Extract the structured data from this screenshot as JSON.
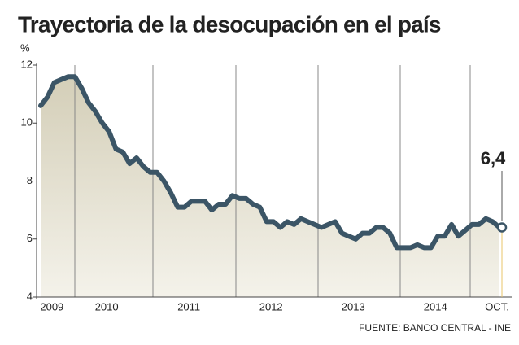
{
  "chart_data": {
    "type": "line",
    "title": "Trayectoria de la desocupación en el país",
    "y_label": "%",
    "source": "FUENTE: BANCO CENTRAL - INE",
    "end_label": "6,4",
    "color": "#3b5566",
    "area_color": "#d8d3bd",
    "ylim": [
      4,
      12
    ],
    "yticks": [
      4,
      6,
      8,
      10,
      12
    ],
    "categories": [
      null,
      null,
      "2009",
      null,
      null,
      null,
      null,
      null,
      null,
      null,
      "2010",
      null,
      null,
      null,
      null,
      null,
      null,
      null,
      null,
      null,
      null,
      null,
      "2011",
      null,
      null,
      null,
      null,
      null,
      null,
      null,
      null,
      null,
      null,
      null,
      "2012",
      null,
      null,
      null,
      null,
      null,
      null,
      null,
      null,
      null,
      null,
      null,
      "2013",
      null,
      null,
      null,
      null,
      null,
      null,
      null,
      null,
      null,
      null,
      null,
      "2014",
      null,
      null,
      null,
      null,
      null,
      null,
      null,
      null,
      "OCT."
    ],
    "values": [
      10.6,
      10.9,
      11.4,
      11.5,
      11.6,
      11.6,
      11.2,
      10.7,
      10.4,
      10.0,
      9.7,
      9.1,
      9.0,
      8.6,
      8.8,
      8.5,
      8.3,
      8.3,
      8.0,
      7.6,
      7.1,
      7.1,
      7.3,
      7.3,
      7.3,
      7.0,
      7.2,
      7.2,
      7.5,
      7.4,
      7.4,
      7.2,
      7.1,
      6.6,
      6.6,
      6.4,
      6.6,
      6.5,
      6.7,
      6.6,
      6.5,
      6.4,
      6.5,
      6.6,
      6.2,
      6.1,
      6.0,
      6.2,
      6.2,
      6.4,
      6.4,
      6.2,
      5.7,
      5.7,
      5.7,
      5.8,
      5.7,
      5.7,
      6.1,
      6.1,
      6.5,
      6.1,
      6.3,
      6.5,
      6.5,
      6.7,
      6.6,
      6.4
    ]
  }
}
